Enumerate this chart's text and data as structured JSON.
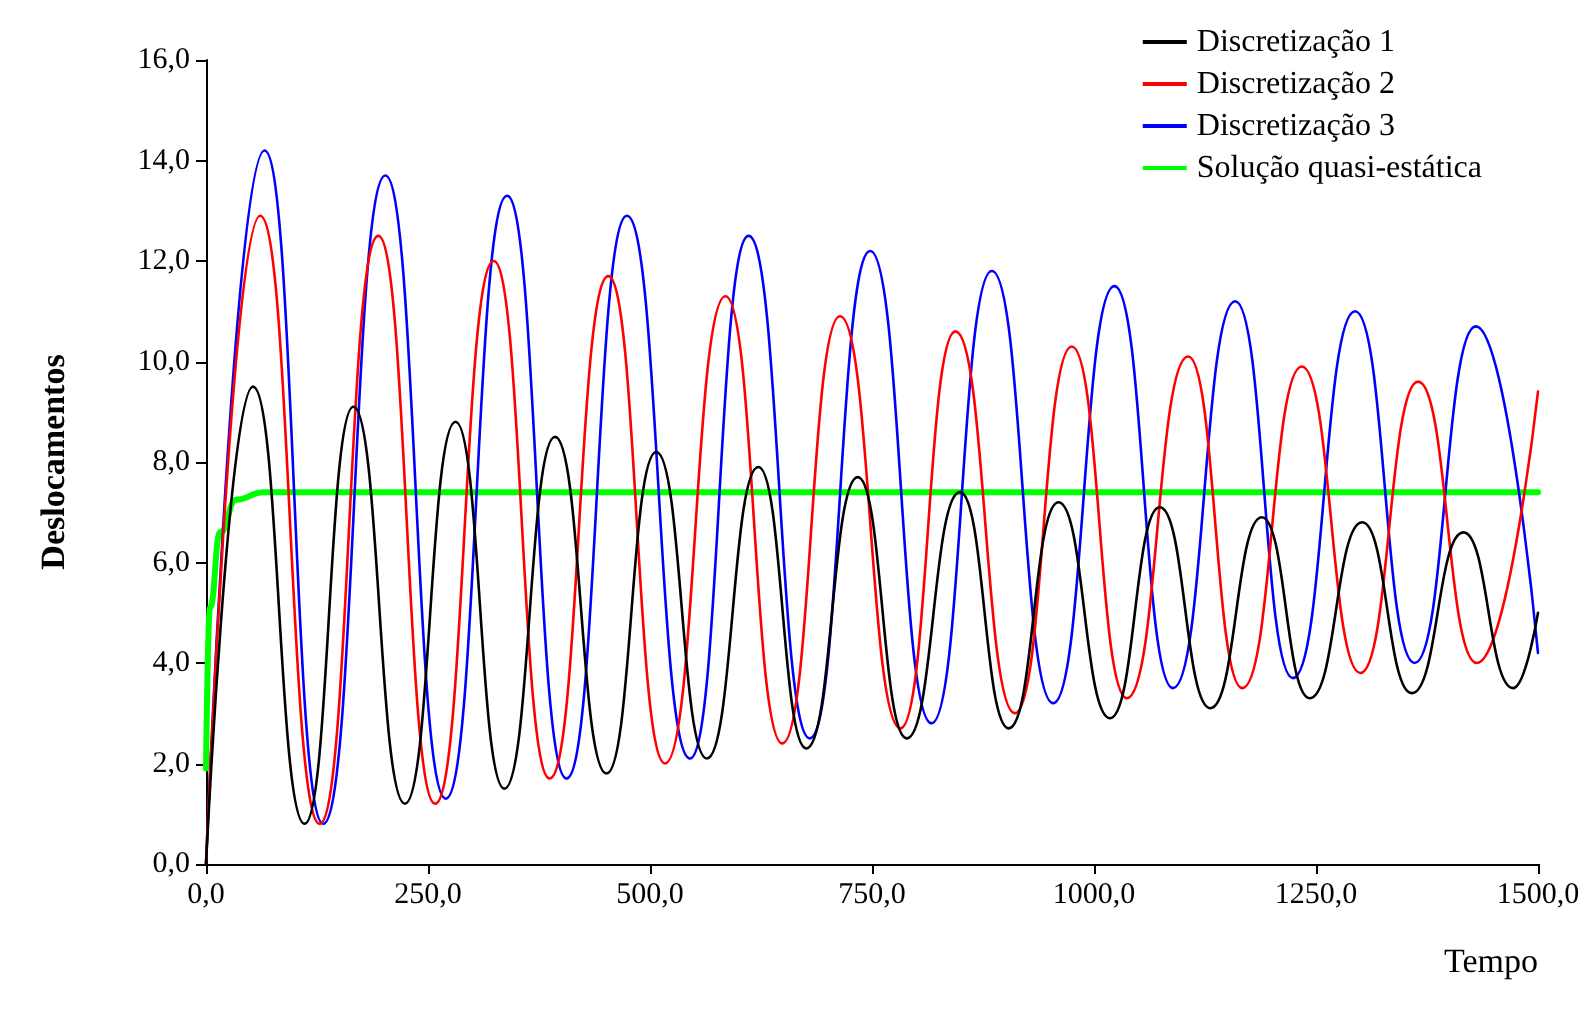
{
  "chart_data": {
    "type": "line",
    "xlabel": "Tempo",
    "ylabel": "Deslocamentos",
    "xlim": [
      0,
      1500
    ],
    "xticks": [
      {
        "value": 0,
        "label": "0,0"
      },
      {
        "value": 250,
        "label": "250,0"
      },
      {
        "value": 500,
        "label": "500,0"
      },
      {
        "value": 750,
        "label": "750,0"
      },
      {
        "value": 1000,
        "label": "1000,0"
      },
      {
        "value": 1250,
        "label": "1250,0"
      },
      {
        "value": 1500,
        "label": "1500,0"
      }
    ],
    "ylim": [
      0,
      16
    ],
    "yticks": [
      {
        "value": 0,
        "label": "0,0"
      },
      {
        "value": 2,
        "label": "2,0"
      },
      {
        "value": 4,
        "label": "4,0"
      },
      {
        "value": 6,
        "label": "6,0"
      },
      {
        "value": 8,
        "label": "8,0"
      },
      {
        "value": 10,
        "label": "10,0"
      },
      {
        "value": 12,
        "label": "12,0"
      },
      {
        "value": 14,
        "label": "14,0"
      },
      {
        "value": 16,
        "label": "16,0"
      }
    ],
    "grid": false,
    "legend": "top right",
    "marker": "none",
    "line_style": "solid",
    "series": [
      {
        "name": "Discretização 1",
        "color": "#000000",
        "x": [
          0,
          53,
          111,
          166,
          224,
          281,
          336,
          393,
          451,
          507,
          564,
          622,
          676,
          734,
          789,
          849,
          904,
          960,
          1018,
          1074,
          1131,
          1189,
          1243,
          1302,
          1358,
          1416,
          1472,
          1500
        ],
        "values": [
          0,
          9.5,
          0.8,
          9.1,
          1.2,
          8.8,
          1.5,
          8.5,
          1.8,
          8.2,
          2.1,
          7.9,
          2.3,
          7.7,
          2.5,
          7.4,
          2.7,
          7.2,
          2.9,
          7.1,
          3.1,
          6.9,
          3.3,
          6.8,
          3.4,
          6.6,
          3.5,
          5.0
        ]
      },
      {
        "name": "Discretização 2",
        "color": "#ff0000",
        "x": [
          0,
          61,
          128,
          194,
          258,
          324,
          387,
          453,
          517,
          585,
          649,
          714,
          782,
          844,
          911,
          975,
          1037,
          1106,
          1167,
          1234,
          1300,
          1365,
          1431,
          1500
        ],
        "values": [
          0,
          12.9,
          0.8,
          12.5,
          1.2,
          12.0,
          1.7,
          11.7,
          2.0,
          11.3,
          2.4,
          10.9,
          2.7,
          10.6,
          3.0,
          10.3,
          3.3,
          10.1,
          3.5,
          9.9,
          3.8,
          9.6,
          4.0,
          9.4
        ]
      },
      {
        "name": "Discretização 3",
        "color": "#0000ff",
        "x": [
          0,
          66,
          132,
          202,
          270,
          339,
          406,
          474,
          545,
          611,
          680,
          748,
          817,
          885,
          954,
          1023,
          1089,
          1159,
          1224,
          1294,
          1361,
          1430,
          1500
        ],
        "values": [
          0,
          14.2,
          0.8,
          13.7,
          1.3,
          13.3,
          1.7,
          12.9,
          2.1,
          12.5,
          2.5,
          12.2,
          2.8,
          11.8,
          3.2,
          11.5,
          3.5,
          11.2,
          3.7,
          11.0,
          4.0,
          10.7,
          4.2
        ]
      },
      {
        "name": "Solução quasi-estática",
        "color": "#00ff00",
        "x": [
          0,
          4.5,
          16,
          34,
          65,
          1500
        ],
        "values": [
          1.9,
          5.1,
          6.6,
          7.25,
          7.4,
          7.4
        ]
      }
    ]
  }
}
